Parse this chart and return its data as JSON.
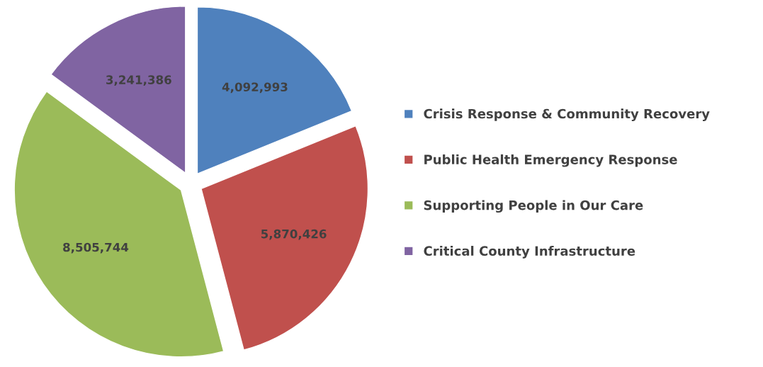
{
  "chart_data": {
    "type": "pie",
    "categories": [
      "Crisis Response & Community Recovery",
      "Public Health Emergency Response",
      "Supporting People in Our Care",
      "Critical County Infrastructure"
    ],
    "values": [
      4092993,
      5870426,
      8505744,
      3241386
    ],
    "value_labels": [
      "4,092,993",
      "5,870,426",
      "8,505,744",
      "3,241,386"
    ],
    "colors": [
      "#4f81bd",
      "#c0504d",
      "#9bbb59",
      "#8064a2"
    ],
    "legend": "right"
  }
}
